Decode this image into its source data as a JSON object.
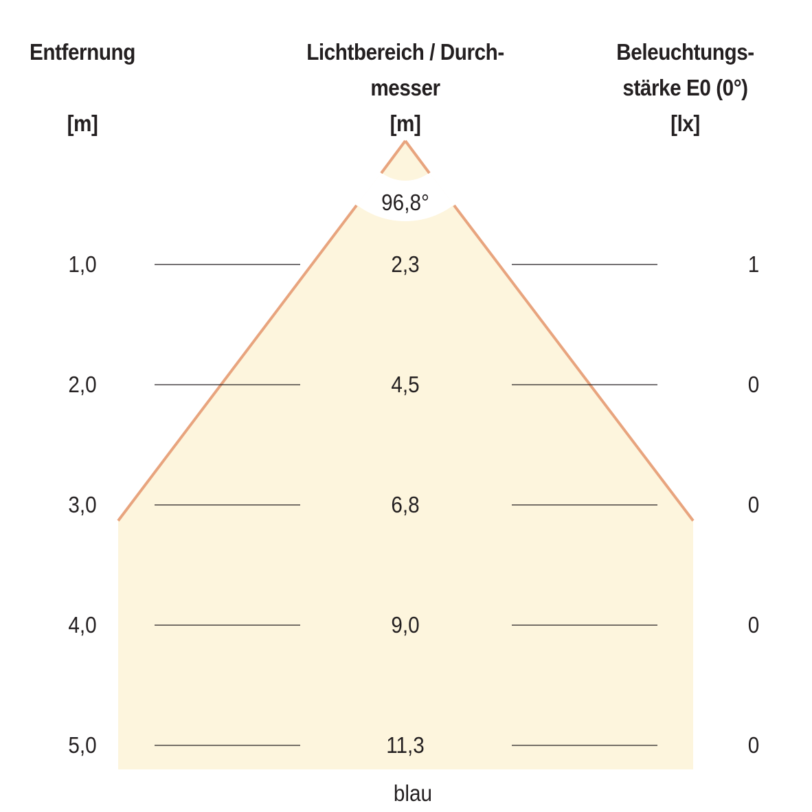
{
  "headers": {
    "distance": {
      "title": "Entfernung",
      "unit": "[m]"
    },
    "diameter": {
      "title_line1": "Lichtbereich / Durch-",
      "title_line2": "messer",
      "unit": "[m]"
    },
    "illuminance": {
      "title_line1": "Beleuchtungs-",
      "title_line2": "stärke E0 (0°)",
      "unit": "[lx]"
    }
  },
  "beam_angle": "96,8°",
  "rows": [
    {
      "distance": "1,0",
      "diameter": "2,3",
      "illuminance": "1"
    },
    {
      "distance": "2,0",
      "diameter": "4,5",
      "illuminance": "0"
    },
    {
      "distance": "3,0",
      "diameter": "6,8",
      "illuminance": "0"
    },
    {
      "distance": "4,0",
      "diameter": "9,0",
      "illuminance": "0"
    },
    {
      "distance": "5,0",
      "diameter": "11,3",
      "illuminance": "0"
    }
  ],
  "color_label": "blau",
  "colors": {
    "beam_fill": "#fdf5dd",
    "beam_edge": "#e8a47e",
    "rule": "#231f20"
  }
}
